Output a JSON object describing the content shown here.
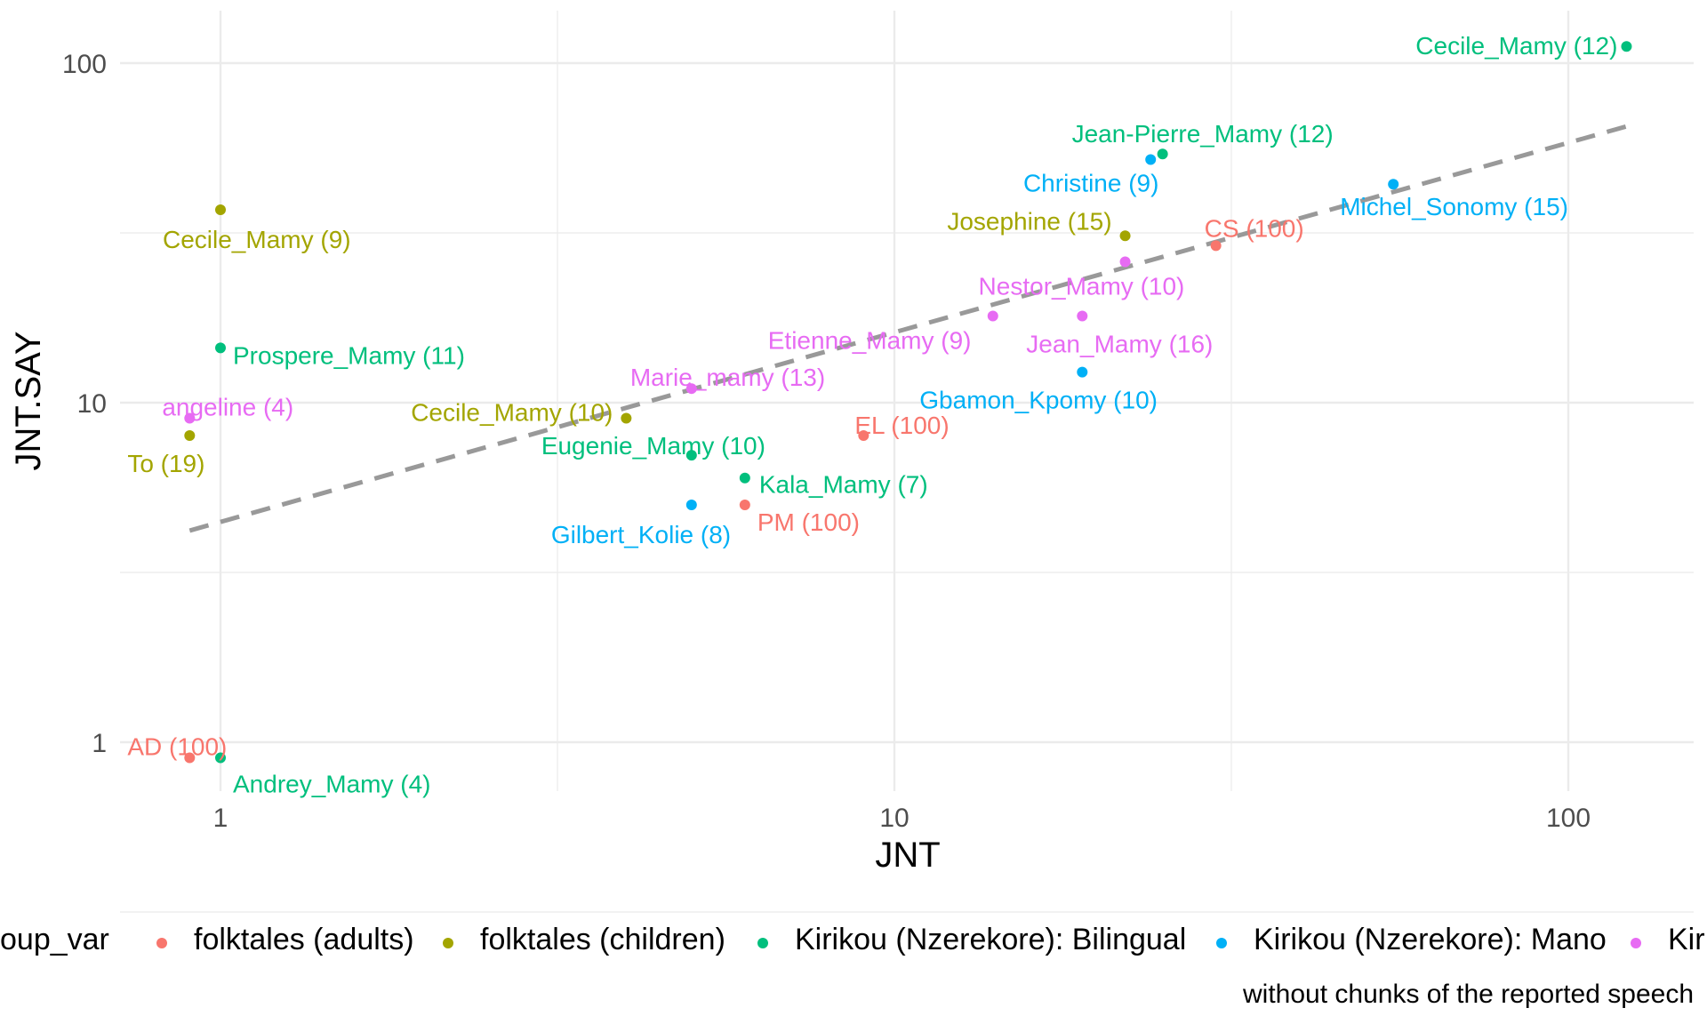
{
  "chart_data": {
    "type": "scatter",
    "xlabel": "JNT",
    "ylabel": "JNT.SAY",
    "xscale": "log10",
    "yscale": "log10",
    "xlim": [
      0.8,
      150
    ],
    "ylim": [
      0.8,
      130
    ],
    "x_ticks": [
      {
        "value": 1,
        "label": "1"
      },
      {
        "value": 10,
        "label": "10"
      },
      {
        "value": 100,
        "label": "100"
      }
    ],
    "y_ticks": [
      {
        "value": 1,
        "label": "1"
      },
      {
        "value": 10,
        "label": "10"
      },
      {
        "value": 100,
        "label": "100"
      }
    ],
    "grid": true,
    "trend_line": {
      "style": "dashed",
      "color": "#999999",
      "from": [
        0.9,
        4.2
      ],
      "to": [
        125,
        66
      ]
    },
    "legend": {
      "position": "bottom",
      "title": "group_var",
      "title_visible": "oup_var",
      "entries": [
        {
          "key": "folktales (adults)",
          "label": "folktales (adults)",
          "color": "#F8766D"
        },
        {
          "key": "folktales (children)",
          "label": "folktales (children)",
          "color": "#A3A500"
        },
        {
          "key": "Kirikou (Nzerekore): Bilingual",
          "label": "Kirikou (Nzerekore): Bilingual",
          "color": "#00BF7D"
        },
        {
          "key": "Kirikou (Nzerekore): Mano",
          "label": "Kirikou (Nzerekore): Mano",
          "color": "#00B0F6"
        },
        {
          "key": "Kir",
          "label": "Kir",
          "color": "#E76BF3"
        }
      ]
    },
    "caption": "without chunks of the reported speech",
    "points": [
      {
        "label": "Cecile_Mamy (12)",
        "x": 122,
        "y": 112,
        "group": "Kirikou (Nzerekore): Bilingual"
      },
      {
        "label": "Jean-Pierre_Mamy (12)",
        "x": 25,
        "y": 54,
        "group": "Kirikou (Nzerekore): Bilingual"
      },
      {
        "label": "Christine (9)",
        "x": 24,
        "y": 52,
        "group": "Kirikou (Nzerekore): Mano"
      },
      {
        "label": "Michel_Sonomy (15)",
        "x": 55,
        "y": 44,
        "group": "Kirikou (Nzerekore): Mano"
      },
      {
        "label": "Josephine (15)",
        "x": 22,
        "y": 31,
        "group": "folktales (children)"
      },
      {
        "label": "CS (100)",
        "x": 30,
        "y": 29,
        "group": "folktales (adults)"
      },
      {
        "label": "Nestor_Mamy (10)",
        "x": 22,
        "y": 26,
        "group": "Kir"
      },
      {
        "label": "Etienne_Mamy (9)",
        "x": 14,
        "y": 18,
        "group": "Kir"
      },
      {
        "label": "Jean_Mamy (16)",
        "x": 19,
        "y": 18,
        "group": "Kir"
      },
      {
        "label": "Gbamon_Kpomy (10)",
        "x": 19,
        "y": 12.3,
        "group": "Kirikou (Nzerekore): Mano"
      },
      {
        "label": "Marie_mamy (13)",
        "x": 5,
        "y": 11,
        "group": "Kir"
      },
      {
        "label": "Cecile_Mamy (10)",
        "x": 4,
        "y": 9,
        "group": "folktales (children)"
      },
      {
        "label": "EL (100)",
        "x": 9,
        "y": 8,
        "group": "folktales (adults)"
      },
      {
        "label": "Eugenie_Mamy (10)",
        "x": 5,
        "y": 7,
        "group": "Kirikou (Nzerekore): Bilingual"
      },
      {
        "label": "Kala_Mamy (7)",
        "x": 6,
        "y": 6,
        "group": "Kirikou (Nzerekore): Bilingual"
      },
      {
        "label": "Gilbert_Kolie (8)",
        "x": 5,
        "y": 5,
        "group": "Kirikou (Nzerekore): Mano"
      },
      {
        "label": "PM (100)",
        "x": 6,
        "y": 5,
        "group": "folktales (adults)"
      },
      {
        "label": "Cecile_Mamy (9)",
        "x": 1,
        "y": 37,
        "group": "folktales (children)"
      },
      {
        "label": "Prospere_Mamy (11)",
        "x": 1,
        "y": 14.5,
        "group": "Kirikou (Nzerekore): Bilingual"
      },
      {
        "label": "angeline (4)",
        "x": 0.9,
        "y": 9,
        "group": "Kir"
      },
      {
        "label": "To (19)",
        "x": 0.9,
        "y": 8,
        "group": "folktales (children)"
      },
      {
        "label": "AD (100)",
        "x": 0.9,
        "y": 0.9,
        "group": "folktales (adults)"
      },
      {
        "label": "Andrey_Mamy (4)",
        "x": 1,
        "y": 0.9,
        "group": "Kirikou (Nzerekore): Bilingual"
      }
    ]
  }
}
